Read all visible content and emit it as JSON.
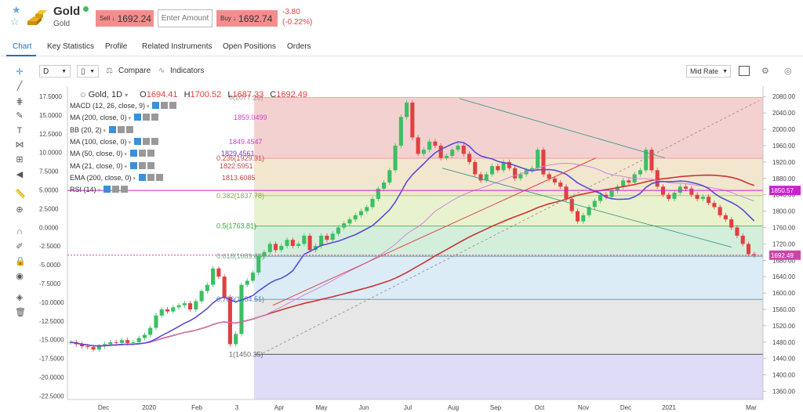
{
  "header": {
    "name": "Gold",
    "subtitle": "Gold",
    "sell_label": "Sell ↓",
    "sell_price": "1692.24",
    "amount_placeholder": "Enter Amount",
    "buy_label": "Buy ↓",
    "buy_price": "1692.74",
    "change_abs": "-3.80",
    "change_pct": "(-0.22%)"
  },
  "tabs": [
    "Chart",
    "Key Statistics",
    "Profile",
    "Related Instruments",
    "Open Positions",
    "Orders"
  ],
  "toolbar": {
    "interval": "D",
    "compare": "Compare",
    "indicators": "Indicators",
    "price_type": "Mid Rate"
  },
  "legend": {
    "symbol": "Gold, 1D",
    "open_label": "O",
    "open": "1694.41",
    "high_label": "H",
    "high": "1700.52",
    "low_label": "L",
    "low": "1687.33",
    "close_label": "C",
    "close": "1692.49",
    "indicators": [
      {
        "name": "MACD (12, 26, close, 9)",
        "value": "",
        "color": "#333333"
      },
      {
        "name": "MA (200, close, 0)",
        "value": "1859.0499",
        "color": "#cc44cc"
      },
      {
        "name": "BB (20, 2)",
        "value": "",
        "color": "#333333"
      },
      {
        "name": "MA (100, close, 0)",
        "value": "1849.4547",
        "color": "#cc44cc"
      },
      {
        "name": "MA (50, close, 0)",
        "value": "1829.4561",
        "color": "#6a3fd8"
      },
      {
        "name": "MA (21, close, 0)",
        "value": "1822.5951",
        "color": "#cc4444"
      },
      {
        "name": "EMA (200, close, 0)",
        "value": "1813.6085",
        "color": "#cc4444"
      },
      {
        "name": "RSI (14)",
        "value": "",
        "color": "#333333"
      }
    ]
  },
  "colors": {
    "accent": "#1f6fc5",
    "down": "#e04040",
    "up": "#3cbf63",
    "sell_bg": "#f48d8d",
    "ma200": "#cc44cc",
    "ma50": "#5b4ad8",
    "ema200": "#cc3333"
  },
  "chart_data": {
    "type": "candlestick",
    "x_ticks": [
      "Dec",
      "2020",
      "Feb",
      "3",
      "Apr",
      "May",
      "Jun",
      "Jul",
      "Aug",
      "Sep",
      "Oct",
      "Nov",
      "Dec",
      "2021",
      "Mar"
    ],
    "price_axis": [
      "2080.00",
      "2040.00",
      "2000.00",
      "1960.00",
      "1920.00",
      "1880.00",
      "1840.00",
      "1800.00",
      "1760.00",
      "1720.00",
      "1680.00",
      "1640.00",
      "1600.00",
      "1560.00",
      "1520.00",
      "1480.00",
      "1440.00",
      "1400.00",
      "1360.00"
    ],
    "macd_axis": [
      "17.5000",
      "15.0000",
      "12.5000",
      "10.0000",
      "7.5000",
      "5.0000",
      "2.5000",
      "0.0000",
      "-2.5000",
      "-5.0000",
      "-7.5000",
      "-10.0000",
      "-12.5000",
      "-15.0000",
      "-17.5000",
      "-20.0000",
      "-22.5000"
    ],
    "price_range": [
      1340,
      2090
    ],
    "fib_levels": [
      {
        "label": "0(2077.26)",
        "value": 2077.26,
        "color": "#f2c9c9"
      },
      {
        "label": "0.236(1929.31)",
        "value": 1929.31,
        "color": "#f1e2c7"
      },
      {
        "label": "0.382(1837.78)",
        "value": 1837.78,
        "color": "#e5f0c6"
      },
      {
        "label": "0.5(1763.81)",
        "value": 1763.81,
        "color": "#cdebd6"
      },
      {
        "label": "0.618(1689.83)",
        "value": 1689.83,
        "color": "#d5e9f5"
      },
      {
        "label": "0.786(1584.51)",
        "value": 1584.51,
        "color": "#e3e3e3"
      },
      {
        "label": "1(1450.35)",
        "value": 1450.35,
        "color": "#d8d6f5"
      }
    ],
    "price_tags": [
      {
        "value": 1850.57,
        "label": "1850.57",
        "color": "#cc22cc"
      },
      {
        "value": 1692.49,
        "label": "1692.49",
        "color": "#cc44aa"
      }
    ],
    "close_series": [
      1480,
      1475,
      1470,
      1468,
      1462,
      1470,
      1475,
      1480,
      1478,
      1485,
      1478,
      1480,
      1490,
      1498,
      1515,
      1545,
      1560,
      1555,
      1565,
      1570,
      1575,
      1560,
      1580,
      1605,
      1620,
      1660,
      1640,
      1590,
      1475,
      1500,
      1620,
      1630,
      1650,
      1690,
      1700,
      1720,
      1705,
      1715,
      1730,
      1715,
      1720,
      1740,
      1705,
      1715,
      1740,
      1730,
      1745,
      1760,
      1770,
      1780,
      1790,
      1800,
      1810,
      1830,
      1855,
      1870,
      1900,
      1960,
      2030,
      2065,
      1980,
      1940,
      1950,
      1970,
      1960,
      1930,
      1935,
      1950,
      1960,
      1940,
      1920,
      1890,
      1875,
      1890,
      1910,
      1900,
      1920,
      1905,
      1880,
      1890,
      1900,
      1905,
      1950,
      1890,
      1880,
      1870,
      1860,
      1830,
      1800,
      1775,
      1790,
      1810,
      1825,
      1840,
      1835,
      1850,
      1860,
      1875,
      1870,
      1890,
      1900,
      1950,
      1900,
      1860,
      1840,
      1830,
      1845,
      1860,
      1855,
      1840,
      1830,
      1835,
      1820,
      1810,
      1790,
      1780,
      1760,
      1740,
      1720,
      1695,
      1692
    ]
  }
}
